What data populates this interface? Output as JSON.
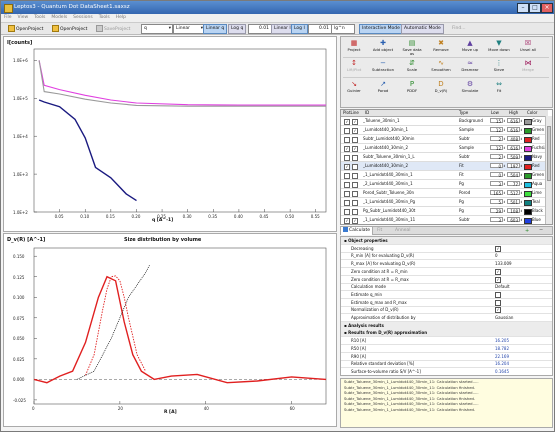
{
  "window": {
    "title": "Leptos3 - Quantum Dot DataSheet1.saxsz"
  },
  "menu": [
    "File",
    "View",
    "Tools",
    "Models",
    "Sessions",
    "Tools",
    "Help"
  ],
  "toolbar": {
    "open_project": "OpenProject",
    "open_project2": "OpenProject",
    "save_project": "SaveProject",
    "q_select": "q",
    "scale_select": "Linear",
    "linear_btn": "Linear q",
    "log_q_btn": "Log q",
    "q_value": "0.01",
    "linear_i_btn": "Linear I",
    "log_i_btn": "Log I",
    "i_value": "0.01",
    "lg_select": "lg^n",
    "interactive_btn": "Interactive Mode",
    "automatic_btn": "Automatic Mode",
    "find_label": "Find..."
  },
  "top_plot": {
    "ylabel": "I[counts]",
    "xlabel": "q [A^-1]",
    "y_ticks": [
      "1.0E+6",
      "1.0E+5",
      "1.0E+4",
      "1.0E+3",
      "1.0E+2"
    ],
    "x_ticks": [
      "0.05",
      "0.10",
      "0.15",
      "0.20",
      "0.25",
      "0.30",
      "0.35",
      "0.40",
      "0.45",
      "0.50",
      "0.55"
    ]
  },
  "bottom_plot": {
    "title": "Size distribution by volume",
    "ylabel": "D_v(R) [A^-1]",
    "xlabel": "R [A]",
    "y_ticks": [
      "0.150",
      "0.125",
      "0.100",
      "0.075",
      "0.050",
      "0.025",
      "0.000",
      "-0.025"
    ],
    "x_ticks": [
      "0",
      "20",
      "40",
      "60"
    ]
  },
  "tools": {
    "row1": [
      {
        "label": "Project",
        "glyph": "▦"
      },
      {
        "label": "Add object",
        "glyph": "✚"
      },
      {
        "label": "Save data as",
        "glyph": "▤"
      },
      {
        "label": "Remove",
        "glyph": "✖"
      },
      {
        "label": "Move up",
        "glyph": "▲"
      },
      {
        "label": "Move down",
        "glyph": "▼"
      },
      {
        "label": "Unsel all",
        "glyph": "☒"
      }
    ],
    "row2": [
      {
        "label": "Lift/Plot",
        "glyph": "↕"
      },
      {
        "label": "Subtraction",
        "glyph": "−"
      },
      {
        "label": "Scale",
        "glyph": "⇵"
      },
      {
        "label": "Smoothen",
        "glyph": "∿"
      },
      {
        "label": "Desmear",
        "glyph": "≈"
      },
      {
        "label": "Sieve",
        "glyph": "⋮"
      },
      {
        "label": "Merge",
        "glyph": "⋈"
      }
    ],
    "row3": [
      {
        "label": "Guinier",
        "glyph": "↘"
      },
      {
        "label": "Porod",
        "glyph": "↗"
      },
      {
        "label": "PDDF",
        "glyph": "P"
      },
      {
        "label": "D_v(R)",
        "glyph": "D"
      },
      {
        "label": "Simulate",
        "glyph": "⚙"
      },
      {
        "label": "Fit",
        "glyph": "⇔"
      }
    ]
  },
  "table": {
    "headers": [
      "PlotLine",
      "ID",
      "Type",
      "Low",
      "High",
      "Color"
    ],
    "rows": [
      {
        "checked": true,
        "line": true,
        "id": "_Toluene_30min_1",
        "type": "Background",
        "low": "15",
        "high": "616",
        "color": "Gray",
        "hex": "#9a9a9a"
      },
      {
        "checked": false,
        "line": true,
        "id": "_Lumidot440_30min_1",
        "type": "Sample",
        "low": "12",
        "high": "616",
        "color": "Green",
        "hex": "#2a9a2a"
      },
      {
        "checked": false,
        "line": false,
        "id": "Subtr_Lumidot440_30min",
        "type": "Subtr",
        "low": "2",
        "high": "408",
        "color": "Red",
        "hex": "#e02020"
      },
      {
        "checked": true,
        "line": true,
        "id": "_Lumidot440_30min_2",
        "type": "Sample",
        "low": "12",
        "high": "616",
        "color": "Fuchsia",
        "hex": "#e040e0"
      },
      {
        "checked": false,
        "line": false,
        "id": "Subtr_Toluene_30min_1_L",
        "type": "Subtr",
        "low": "2",
        "high": "509",
        "color": "Navy",
        "hex": "#1a1a80"
      },
      {
        "checked": true,
        "line": false,
        "id": "_Lumidot440_30min_2",
        "type": "Fit",
        "low": "0",
        "high": "197",
        "color": "Red",
        "hex": "#e02020"
      },
      {
        "checked": false,
        "line": false,
        "id": "_1_Lumidot440_30min_1",
        "type": "Fit",
        "low": "0",
        "high": "504",
        "color": "Green",
        "hex": "#2a9a2a"
      },
      {
        "checked": false,
        "line": false,
        "id": "_2_Lumidot440_30min_1",
        "type": "Pg",
        "low": "3",
        "high": "77",
        "color": "Aqua",
        "hex": "#20c0e0"
      },
      {
        "checked": false,
        "line": false,
        "id": "Porod_Subtr_Toluene_30n",
        "type": "Porod",
        "low": "165",
        "high": "517",
        "color": "Lime",
        "hex": "#40e040"
      },
      {
        "checked": false,
        "line": false,
        "id": "_1_Lumidot440_30min_Pg",
        "type": "Pg",
        "low": "5",
        "high": "501",
        "color": "Teal",
        "hex": "#108080"
      },
      {
        "checked": false,
        "line": false,
        "id": "Pg_Subtr_Lumidot440_30t",
        "type": "Pg",
        "low": "29",
        "high": "108",
        "color": "Black",
        "hex": "#000000"
      },
      {
        "checked": true,
        "line": true,
        "id": "_1_Lumidot440_30min_11",
        "type": "Subtr",
        "low": "3",
        "high": "603",
        "color": "Blue",
        "hex": "#2040e0"
      }
    ]
  },
  "tabs": [
    "Calculate",
    "Fit",
    "Anneal"
  ],
  "props": [
    {
      "kind": "hdr",
      "k": "Object properties"
    },
    {
      "kind": "check",
      "k": "Decreasing",
      "v": true
    },
    {
      "kind": "val",
      "k": "R_min [A] for evaluating D_v(R)",
      "v": "0"
    },
    {
      "kind": "val",
      "k": "R_max [A] for evaluating D_v(R)",
      "v": "133.009"
    },
    {
      "kind": "check",
      "k": "Zero condition at R = R_min",
      "v": true
    },
    {
      "kind": "check",
      "k": "Zero condition at R = R_max",
      "v": true
    },
    {
      "kind": "val",
      "k": "Calculation mode",
      "v": "Default"
    },
    {
      "kind": "check",
      "k": "Estimate q_min",
      "v": false
    },
    {
      "kind": "check",
      "k": "Estimate q_max and R_max",
      "v": false
    },
    {
      "kind": "check",
      "k": "Normalization of D_v(R)",
      "v": true
    },
    {
      "kind": "val",
      "k": "Approximation of distribution by",
      "v": "Gaussian"
    },
    {
      "kind": "hdr",
      "k": "Analysis results"
    },
    {
      "kind": "hdr",
      "k": "Results from D_v(R) approximation"
    },
    {
      "kind": "res",
      "k": "R10 [A]",
      "v": "16.205"
    },
    {
      "kind": "res",
      "k": "R50 [A]",
      "v": "18.782"
    },
    {
      "kind": "res",
      "k": "R90 [A]",
      "v": "22.169"
    },
    {
      "kind": "res",
      "k": "Relative standard deviation [%]",
      "v": "16.204"
    },
    {
      "kind": "res",
      "k": "Surface-to-volume ratio S/V [A^-1]",
      "v": "0.1645"
    }
  ],
  "log": [
    "Subtr_Toluene_30min_1_Lumidot440_30min_11: Calculation started.....",
    "Subtr_Toluene_30min_1_Lumidot440_30min_11: Calculation finished.",
    "Subtr_Toluene_30min_1_Lumidot440_30min_11: Calculation started.....",
    "Subtr_Toluene_30min_1_Lumidot440_30min_11: Calculation finished.",
    "Subtr_Toluene_30min_1_Lumidot440_30min_11: Calculation started.....",
    "Subtr_Toluene_30min_1_Lumidot440_30min_11: Calculation finished."
  ],
  "colors": {
    "accent": "#3466b0",
    "red": "#e02020",
    "navy": "#1a1a80",
    "fuchsia": "#e040e0",
    "gray": "#9a9a9a",
    "black": "#000000"
  },
  "chart_data": [
    {
      "type": "line",
      "ylabel": "I[counts]",
      "xlabel": "q [A^-1]",
      "yscale": "log",
      "xlim": [
        0.0,
        0.57
      ],
      "ylim": [
        100,
        2000000
      ],
      "series": [
        {
          "name": "_Lumidot440_30min_2",
          "x": [
            0.01,
            0.02,
            0.05,
            0.1,
            0.15,
            0.2,
            0.3,
            0.4,
            0.5,
            0.57
          ],
          "values": [
            1000000,
            220000,
            170000,
            120000,
            90000,
            75000,
            68000,
            66000,
            66000,
            66000
          ]
        },
        {
          "name": "_Toluene_30min_1",
          "x": [
            0.01,
            0.02,
            0.05,
            0.1,
            0.15,
            0.2,
            0.3,
            0.4,
            0.5,
            0.57
          ],
          "values": [
            1000000,
            150000,
            130000,
            95000,
            75000,
            65000,
            62000,
            62000,
            62000,
            62000
          ]
        },
        {
          "name": "Subtr_Lumidot440_30min",
          "x": [
            0.01,
            0.02,
            0.05,
            0.08,
            0.1,
            0.12,
            0.15,
            0.18,
            0.2
          ],
          "values": [
            90000,
            80000,
            60000,
            28000,
            9000,
            1500,
            800,
            300,
            200
          ]
        }
      ]
    },
    {
      "type": "line",
      "title": "Size distribution by volume",
      "ylabel": "D_v(R) [A^-1]",
      "xlabel": "R [A]",
      "xlim": [
        0,
        68
      ],
      "ylim": [
        -0.03,
        0.16
      ],
      "series": [
        {
          "name": "D_v(R)",
          "x": [
            0,
            3,
            6,
            9,
            12,
            15,
            17,
            19,
            21,
            23,
            25,
            28,
            32,
            38,
            45,
            52,
            60,
            68
          ],
          "values": [
            0.0,
            -0.004,
            0.004,
            0.01,
            0.045,
            0.1,
            0.125,
            0.12,
            0.07,
            0.03,
            0.01,
            0.0,
            0.004,
            0.006,
            -0.004,
            -0.002,
            0.003,
            0.0
          ]
        },
        {
          "name": "Gaussian",
          "x": [
            12,
            14,
            16,
            17,
            18,
            19,
            20,
            21,
            22,
            24,
            26
          ],
          "values": [
            0.005,
            0.03,
            0.085,
            0.11,
            0.125,
            0.126,
            0.12,
            0.1,
            0.075,
            0.03,
            0.01
          ]
        },
        {
          "name": "Cumulative",
          "x": [
            10,
            14,
            18,
            20,
            22,
            24,
            26,
            27
          ],
          "values": [
            0.0,
            0.01,
            0.05,
            0.075,
            0.1,
            0.115,
            0.13,
            0.14
          ]
        }
      ]
    }
  ]
}
